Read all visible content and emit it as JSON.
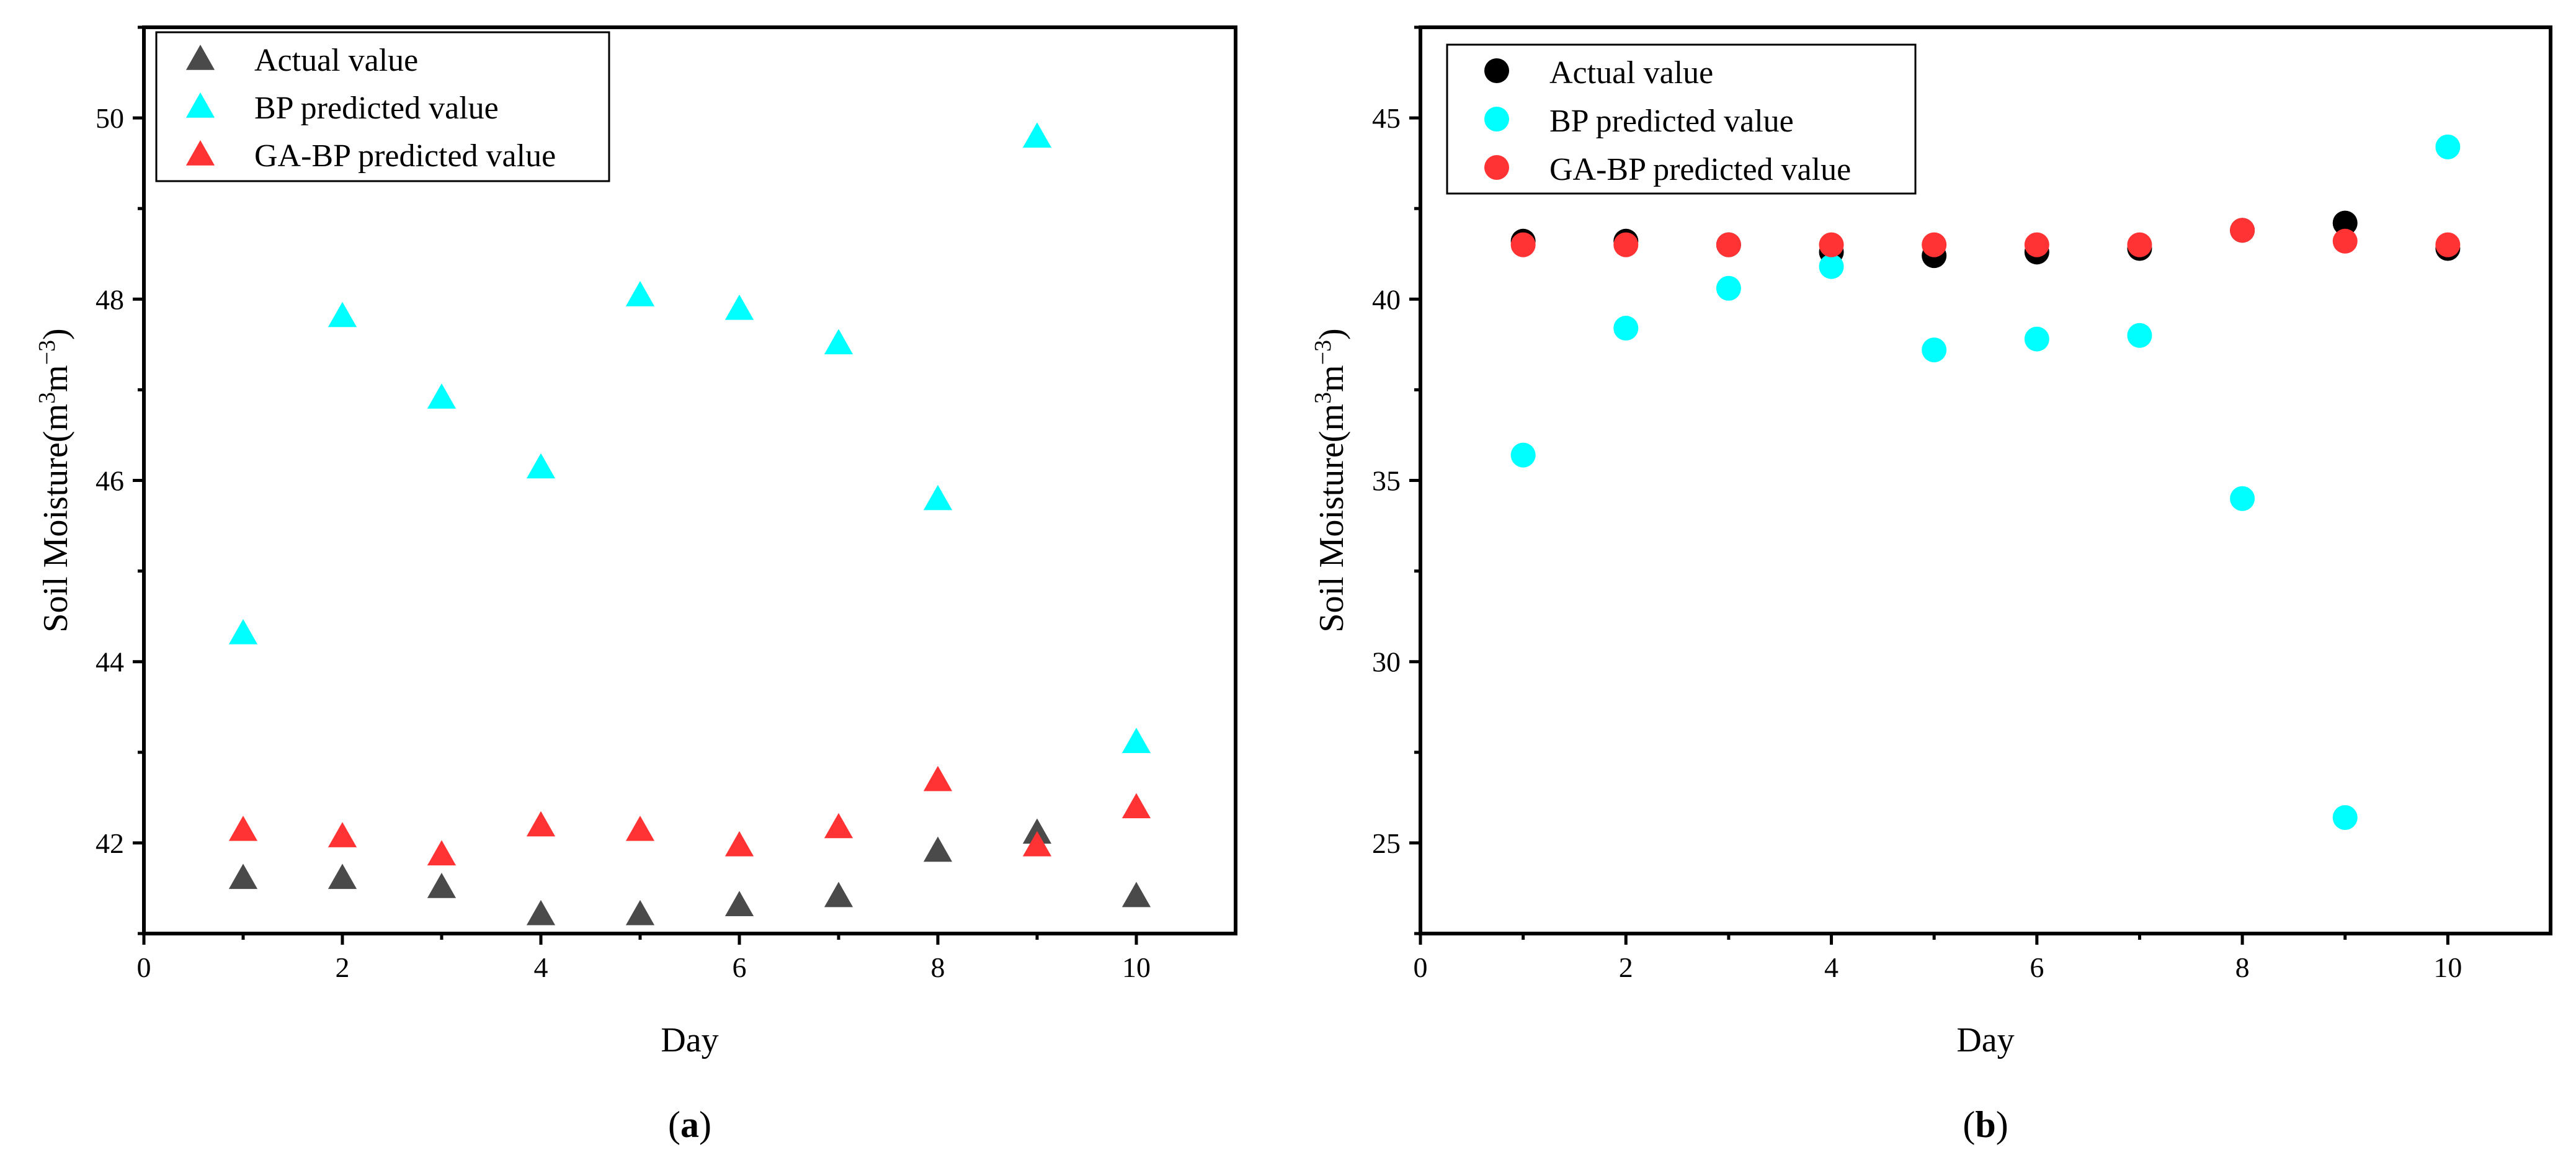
{
  "chart_data": [
    {
      "type": "scatter",
      "panel_label": "a",
      "marker": "triangle",
      "xlabel": "Day",
      "ylabel": "Soil Moisture(m",
      "ylabel_sup1": "3",
      "ylabel_mid": "m",
      "ylabel_sup2": "−3",
      "ylabel_end": ")",
      "xlim": [
        0,
        11
      ],
      "ylim": [
        41,
        51
      ],
      "xticks": [
        0,
        2,
        4,
        6,
        8,
        10
      ],
      "yticks": [
        42,
        44,
        46,
        48,
        50
      ],
      "legend_position": "top-left",
      "series": [
        {
          "name": "Actual value",
          "color": "#4a4a4a",
          "x": [
            1,
            2,
            3,
            4,
            5,
            6,
            7,
            8,
            9,
            10
          ],
          "y": [
            41.62,
            41.62,
            41.52,
            41.22,
            41.22,
            41.32,
            41.42,
            41.92,
            42.12,
            41.42
          ]
        },
        {
          "name": "BP predicted value",
          "color": "#00ffff",
          "x": [
            1,
            2,
            3,
            4,
            5,
            6,
            7,
            8,
            9,
            10
          ],
          "y": [
            44.32,
            47.82,
            46.92,
            46.15,
            48.05,
            47.9,
            47.52,
            45.8,
            49.8,
            43.12
          ]
        },
        {
          "name": "GA-BP predicted value",
          "color": "#ff3333",
          "x": [
            1,
            2,
            3,
            4,
            5,
            6,
            7,
            8,
            9,
            10
          ],
          "y": [
            42.15,
            42.08,
            41.88,
            42.2,
            42.15,
            41.98,
            42.18,
            42.7,
            41.98,
            42.4
          ]
        }
      ]
    },
    {
      "type": "scatter",
      "panel_label": "b",
      "marker": "circle",
      "xlabel": "Day",
      "ylabel": "Soil Moisture(m",
      "ylabel_sup1": "3",
      "ylabel_mid": "m",
      "ylabel_sup2": "−3",
      "ylabel_end": ")",
      "xlim": [
        0,
        11
      ],
      "ylim": [
        22.5,
        47.5
      ],
      "xticks": [
        0,
        2,
        4,
        6,
        8,
        10
      ],
      "yticks": [
        25,
        30,
        35,
        40,
        45
      ],
      "legend_position": "top-left",
      "series": [
        {
          "name": "Actual value",
          "color": "#000000",
          "x": [
            1,
            2,
            3,
            4,
            5,
            6,
            7,
            8,
            9,
            10
          ],
          "y": [
            41.6,
            41.6,
            41.5,
            41.3,
            41.2,
            41.3,
            41.4,
            41.9,
            42.1,
            41.4
          ]
        },
        {
          "name": "BP predicted value",
          "color": "#00ffff",
          "x": [
            1,
            2,
            3,
            4,
            5,
            6,
            7,
            8,
            9,
            10
          ],
          "y": [
            35.7,
            39.2,
            40.3,
            40.9,
            38.6,
            38.9,
            39.0,
            34.5,
            25.7,
            44.2
          ]
        },
        {
          "name": "GA-BP predicted value",
          "color": "#ff3333",
          "x": [
            1,
            2,
            3,
            4,
            5,
            6,
            7,
            8,
            9,
            10
          ],
          "y": [
            41.5,
            41.5,
            41.5,
            41.5,
            41.5,
            41.5,
            41.5,
            41.9,
            41.6,
            41.5
          ]
        }
      ]
    }
  ]
}
